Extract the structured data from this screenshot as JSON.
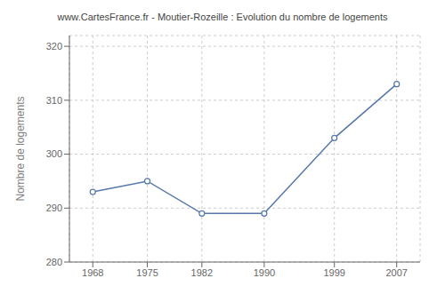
{
  "chart_data": {
    "type": "line",
    "title": "www.CartesFrance.fr - Moutier-Rozeille : Evolution du nombre de logements",
    "ylabel": "Nombre de logements",
    "x": [
      1968,
      1975,
      1982,
      1990,
      1999,
      2007
    ],
    "values": [
      293,
      295,
      289,
      289,
      303,
      313
    ],
    "xlim": [
      1965,
      2010
    ],
    "ylim": [
      280,
      322
    ],
    "xticks": [
      1968,
      1975,
      1982,
      1990,
      1999,
      2007
    ],
    "yticks": [
      280,
      290,
      300,
      310,
      320
    ],
    "color": "#5577aa",
    "marker": "circle",
    "grid": true
  }
}
